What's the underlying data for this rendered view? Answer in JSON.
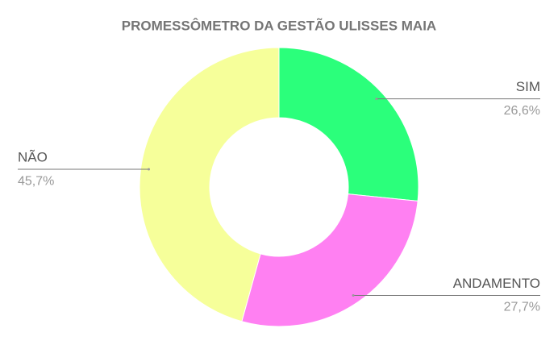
{
  "chart_data": {
    "type": "donut",
    "title": "PROMESSÔMETRO DA GESTÃO ULISSES MAIA",
    "categories": [
      "SIM",
      "ANDAMENTO",
      "NÃO"
    ],
    "values": [
      26.6,
      27.7,
      45.7
    ],
    "value_labels": [
      "26,6%",
      "27,7%",
      "45,7%"
    ],
    "colors": [
      "#2bff7b",
      "#ff80f2",
      "#f6ff9a"
    ]
  }
}
